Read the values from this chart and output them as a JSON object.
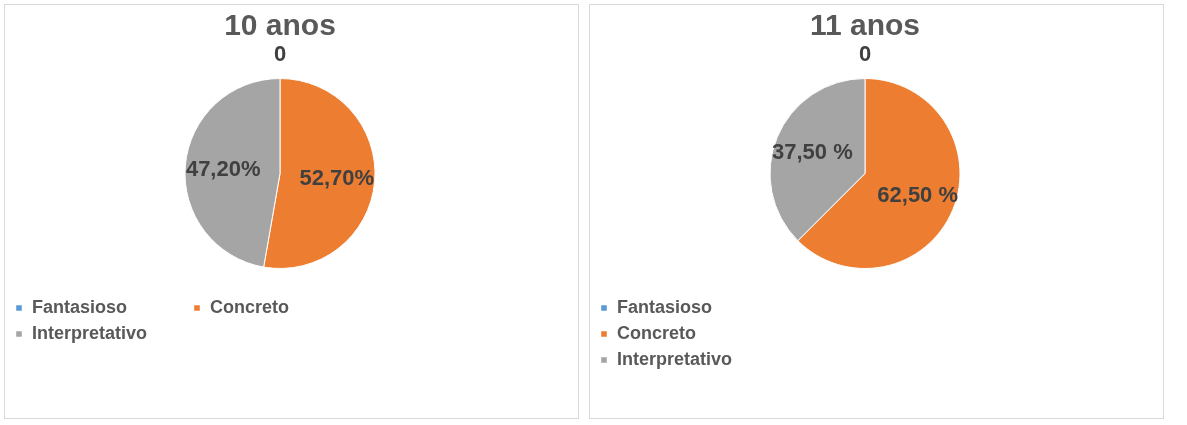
{
  "chart_data": [
    {
      "type": "pie",
      "title": "10 anos",
      "categories": [
        "Fantasioso",
        "Concreto",
        "Interpretativo"
      ],
      "values": [
        0,
        52.7,
        47.2
      ],
      "colors": [
        "#5b9bd5",
        "#ed7d31",
        "#a5a5a5"
      ],
      "value_labels": [
        "0",
        "52,70%",
        "47,20%"
      ],
      "legend": "bottom"
    },
    {
      "type": "pie",
      "title": "11 anos",
      "categories": [
        "Fantasioso",
        "Concreto",
        "Interpretativo"
      ],
      "values": [
        0,
        62.5,
        37.5
      ],
      "colors": [
        "#5b9bd5",
        "#ed7d31",
        "#a5a5a5"
      ],
      "value_labels": [
        "0",
        "62,50 %",
        "37,50 %"
      ],
      "legend": "bottom"
    }
  ]
}
